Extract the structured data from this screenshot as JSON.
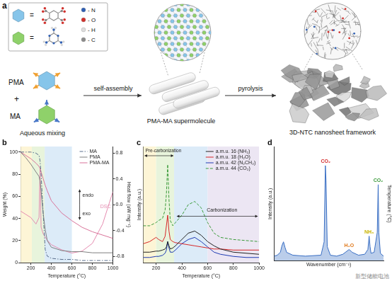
{
  "panel_a": {
    "label": "a",
    "equals": "=",
    "elements": [
      {
        "text": "- N",
        "color": "#2f5fb3"
      },
      {
        "text": "- O",
        "color": "#d0312d"
      },
      {
        "text": "- H",
        "color": "#dddddd"
      },
      {
        "text": "- C",
        "color": "#8c8c8c"
      }
    ],
    "reactants": [
      {
        "name": "PMA",
        "color": "#86c5ea"
      },
      {
        "name": "MA",
        "color": "#8fd16a"
      }
    ],
    "plus": "+",
    "step_labels": [
      "Aqueous mixing",
      "self-assembly",
      "pyrolysis"
    ],
    "products": [
      "PMA-MA supermolecule",
      "3D-NTC nanosheet framework"
    ]
  },
  "chart_data": [
    {
      "title": "b",
      "type": "line",
      "x_label": "Temperature (°C)",
      "y_label": "Weight (%)",
      "y2_label": "Heat flow (uW mg⁻¹)",
      "x": [
        100,
        150,
        200,
        250,
        280,
        290,
        300,
        320,
        340,
        360,
        400,
        500,
        600,
        700,
        800,
        900,
        1000
      ],
      "xlim": [
        100,
        1000
      ],
      "xticks": [
        200,
        400,
        600,
        800,
        1000
      ],
      "ylim": [
        0,
        105
      ],
      "yticks": [
        0,
        20,
        40,
        60,
        80,
        100
      ],
      "y2lim": [
        -0.9,
        0.9
      ],
      "y2ticks": [
        -0.8,
        -0.4,
        {
          "value": 0,
          "label": "0.0"
        },
        0.4,
        0.8
      ],
      "series": [
        {
          "name": "MA",
          "color": "#5a6f8c",
          "line_style": "dashdot",
          "values": [
            100,
            100,
            100,
            99,
            97,
            92,
            80,
            45,
            12,
            6,
            4,
            3,
            3,
            2,
            2,
            2,
            2
          ]
        },
        {
          "name": "PMA",
          "color": "#7f7f7f",
          "line_style": "solid",
          "values": [
            100,
            95,
            89,
            82,
            78,
            74,
            65,
            45,
            30,
            20,
            14,
            11,
            10,
            10,
            9,
            9,
            9
          ]
        },
        {
          "name": "PMA-MA",
          "color": "#d9739a",
          "line_style": "solid",
          "values": [
            100,
            97,
            94,
            90,
            87,
            85,
            82,
            76,
            70,
            65,
            56,
            45,
            38,
            32,
            28,
            25,
            22
          ]
        },
        {
          "name": "DSC",
          "color": "#e58bb0",
          "line_style": "solid",
          "axis": "y2",
          "values": [
            -0.1,
            -0.15,
            -0.2,
            -0.3,
            -0.2,
            0.55,
            -0.35,
            -0.45,
            -0.5,
            -0.55,
            -0.62,
            -0.7,
            -0.75,
            -0.72,
            -0.6,
            -0.3,
            0.2
          ]
        }
      ],
      "bands": [
        {
          "from": 100,
          "to": 210,
          "color": "#fdf5d6"
        },
        {
          "from": 210,
          "to": 335,
          "color": "#e8f4dc"
        },
        {
          "from": 335,
          "to": 600,
          "color": "#dcebf8"
        }
      ],
      "annotations": [
        {
          "text": "endo"
        },
        {
          "text": "exo"
        }
      ],
      "grid": false,
      "legend": "top-right"
    },
    {
      "title": "c",
      "type": "line",
      "x_label": "Temperature (°C)",
      "y_label": "Intensity (a.u.)",
      "x": [
        100,
        150,
        200,
        220,
        250,
        270,
        280,
        290,
        300,
        310,
        330,
        350,
        400,
        450,
        500,
        550,
        600,
        650,
        700,
        800,
        900,
        1000
      ],
      "xlim": [
        100,
        1000
      ],
      "xticks": [
        200,
        400,
        600,
        800,
        1000
      ],
      "ylim": [
        0,
        11
      ],
      "tick_labels": "x",
      "series": [
        {
          "name": "a.m.u. 16 (NH₂)",
          "color": "#222222",
          "line_style": "solid",
          "values": [
            1.0,
            1.0,
            1.1,
            1.1,
            1.2,
            1.3,
            1.5,
            2.0,
            1.6,
            1.3,
            1.4,
            1.6,
            2.2,
            2.8,
            3.0,
            2.6,
            2.0,
            1.6,
            1.3,
            1.0,
            0.9,
            0.8
          ]
        },
        {
          "name": "a.m.u. 18 (H₂O)",
          "color": "#d62728",
          "line_style": "solid",
          "values": [
            1.8,
            2.0,
            2.4,
            2.2,
            2.0,
            2.5,
            3.5,
            4.5,
            3.0,
            2.2,
            2.0,
            1.9,
            1.8,
            1.7,
            1.6,
            1.5,
            1.4,
            1.3,
            1.3,
            1.2,
            1.2,
            1.2
          ]
        },
        {
          "name": "a.m.u. 42 (N₂CH₂)",
          "color": "#1f3bb3",
          "line_style": "solid",
          "values": [
            0.5,
            0.5,
            0.6,
            0.6,
            0.7,
            0.9,
            1.2,
            2.0,
            1.4,
            1.0,
            1.0,
            1.2,
            1.8,
            2.2,
            2.4,
            2.0,
            1.5,
            1.0,
            0.8,
            0.6,
            0.5,
            0.5
          ]
        },
        {
          "name": "a.m.u. 44 (CO₂)",
          "color": "#3a9a3a",
          "line_style": "dashed",
          "values": [
            3.5,
            3.5,
            3.8,
            4.0,
            4.2,
            5.0,
            6.5,
            9.3,
            6.0,
            4.0,
            3.5,
            3.8,
            4.5,
            5.5,
            5.8,
            5.2,
            3.8,
            2.8,
            2.4,
            2.2,
            2.1,
            2.0
          ]
        }
      ],
      "bands": [
        {
          "from": 100,
          "to": 200,
          "color": "#fdf5d6"
        },
        {
          "from": 200,
          "to": 340,
          "color": "#e8f4dc"
        },
        {
          "from": 340,
          "to": 600,
          "color": "#dcebf8"
        },
        {
          "from": 600,
          "to": 1000,
          "color": "#ece6f3"
        }
      ],
      "annotations": [
        {
          "text": "Pre-carbonization"
        },
        {
          "text": "Carbonization"
        }
      ],
      "grid": false,
      "legend": "top-right"
    },
    {
      "title": "d",
      "type": "area",
      "x_label": "Wavenumber (cm⁻¹)",
      "y_label": "Intensity (a.u.)",
      "z_label": "Temperature (°C)",
      "x": [
        4000,
        3900,
        3800,
        3750,
        3700,
        3650,
        3600,
        3400,
        3000,
        2500,
        2400,
        2360,
        2340,
        2300,
        2200,
        2000,
        1800,
        1600,
        1500,
        1300,
        1100,
        1000,
        960,
        930,
        900,
        800,
        700,
        670,
        650,
        600,
        500
      ],
      "values": [
        0.5,
        0.6,
        0.9,
        1.6,
        2.0,
        1.4,
        0.9,
        0.6,
        0.5,
        0.6,
        2.0,
        10,
        8.5,
        1.5,
        0.6,
        0.5,
        0.7,
        1.2,
        0.9,
        0.6,
        0.7,
        1.2,
        2.6,
        1.5,
        0.8,
        0.9,
        3,
        8,
        3,
        0.8,
        0.5
      ],
      "color": "#3a6fc4",
      "xlim": [
        4000,
        500
      ],
      "ylim": [
        0,
        12
      ],
      "tick_labels": false,
      "annotations": [
        {
          "text": "CO₂",
          "x": 2350,
          "color": "#d42a2a"
        },
        {
          "text": "CO₂",
          "x": 670,
          "color": "#3a9a3a"
        },
        {
          "text": "NH₃",
          "x": 960,
          "color": "#c9b400"
        },
        {
          "text": "H₂O",
          "x": 1600,
          "color": "#e07b1f"
        }
      ],
      "grid": false
    }
  ],
  "watermark": "新型储能电池"
}
